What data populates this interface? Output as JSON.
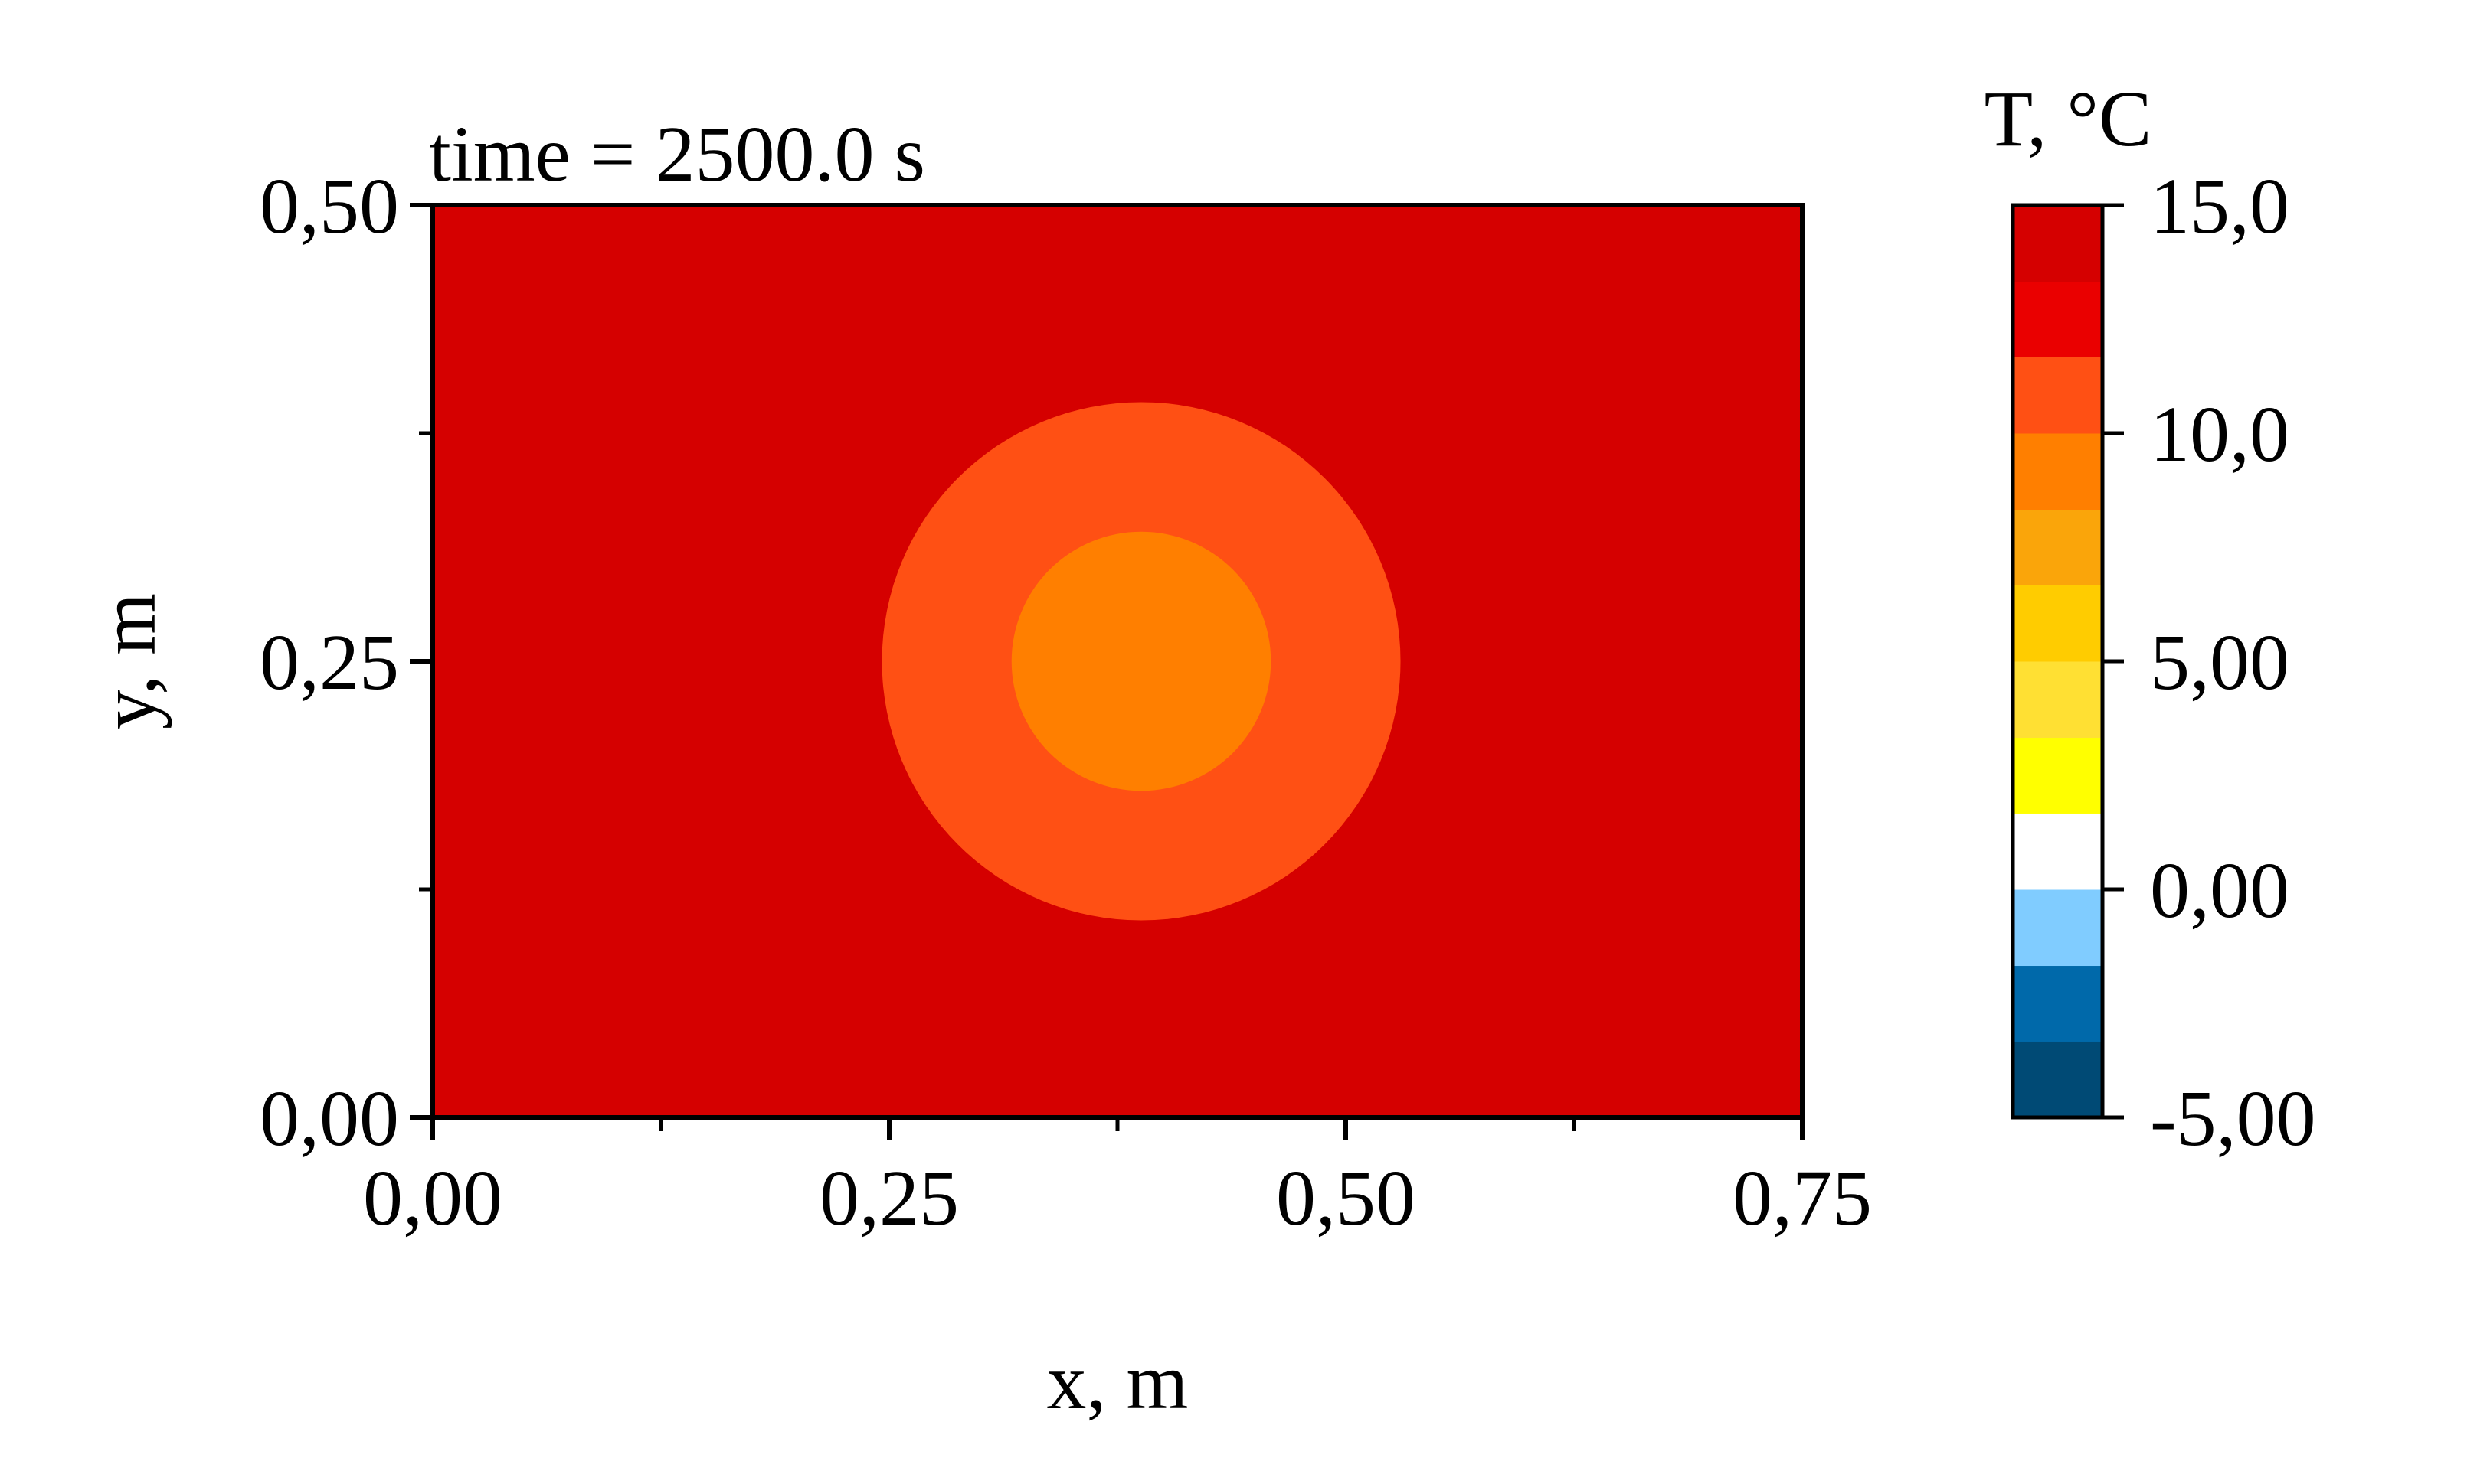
{
  "chart_data": {
    "type": "heatmap",
    "annotation": "time = 2500.0 s",
    "xlabel": "x, m",
    "ylabel": "y, m",
    "xlim": [
      0,
      0.75
    ],
    "ylim": [
      0,
      0.5
    ],
    "xticks": [
      {
        "value": 0.0,
        "label": "0,00"
      },
      {
        "value": 0.25,
        "label": "0,25"
      },
      {
        "value": 0.5,
        "label": "0,50"
      },
      {
        "value": 0.75,
        "label": "0,75"
      }
    ],
    "yticks": [
      {
        "value": 0.0,
        "label": "0,00"
      },
      {
        "value": 0.25,
        "label": "0,25"
      },
      {
        "value": 0.5,
        "label": "0,50"
      }
    ],
    "x_minor_ticks": [
      0.125,
      0.375,
      0.625
    ],
    "y_minor_ticks": [
      0.125,
      0.375
    ],
    "field": {
      "background_level": 13.75,
      "regions": [
        {
          "shape": "circle",
          "center": [
            0.388,
            0.25
          ],
          "radius": 0.142,
          "level": 11.25
        },
        {
          "shape": "circle",
          "center": [
            0.388,
            0.25
          ],
          "radius": 0.071,
          "level": 8.75
        }
      ]
    },
    "colorbar": {
      "title": "T, °C",
      "range": [
        -5.0,
        15.0
      ],
      "levels": [
        {
          "from": -5.0,
          "to": -3.33,
          "color": "#004A75"
        },
        {
          "from": -3.33,
          "to": -1.67,
          "color": "#0069AA"
        },
        {
          "from": -1.67,
          "to": 0.0,
          "color": "#80CCFF"
        },
        {
          "from": 0.0,
          "to": 1.67,
          "color": "#FFFFFF"
        },
        {
          "from": 1.67,
          "to": 3.33,
          "color": "#FFFF00"
        },
        {
          "from": 3.33,
          "to": 5.0,
          "color": "#FFE033"
        },
        {
          "from": 5.0,
          "to": 6.67,
          "color": "#FFCC00"
        },
        {
          "from": 6.67,
          "to": 8.33,
          "color": "#FAA50A"
        },
        {
          "from": 8.33,
          "to": 10.0,
          "color": "#FF7F00"
        },
        {
          "from": 10.0,
          "to": 11.67,
          "color": "#FF5014"
        },
        {
          "from": 11.67,
          "to": 13.33,
          "color": "#EA0000"
        },
        {
          "from": 13.33,
          "to": 15.0,
          "color": "#D50000"
        }
      ],
      "ticks": [
        {
          "value": 15.0,
          "label": "15,0"
        },
        {
          "value": 10.0,
          "label": "10,0"
        },
        {
          "value": 5.0,
          "label": "5,00"
        },
        {
          "value": 0.0,
          "label": "0,00"
        },
        {
          "value": -5.0,
          "label": "-5,00"
        }
      ]
    }
  }
}
